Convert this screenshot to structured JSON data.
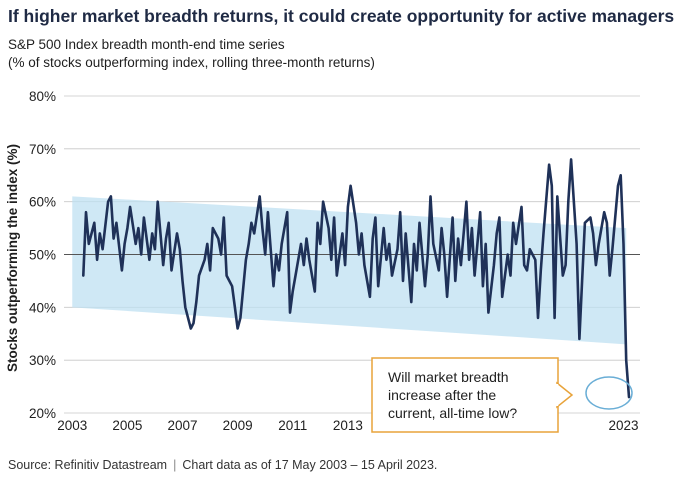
{
  "title": "If higher market breadth returns, it could create opportunity for active managers",
  "subtitle_line1": "S&P 500 Index breadth month-end time series",
  "subtitle_line2": "(% of stocks outperforming index, rolling three-month returns)",
  "callout": {
    "line1": "Will market breadth",
    "line2": "increase after the",
    "line3": "current, all-time low?"
  },
  "footer": {
    "source": "Source: Refinitiv Datastream",
    "note": "Chart data as of 17 May 2003 – 15 April 2023."
  },
  "colors": {
    "line": "#1f3158",
    "band": "#bfe0f2",
    "callout_border": "#e8a33a",
    "circle": "#6aaed6",
    "gridline_50": "#555555",
    "title": "#1f2a44"
  },
  "chart_data": {
    "type": "line",
    "title": "S&P 500 Index breadth month-end time series",
    "xlabel": "",
    "ylabel": "Stocks outperforming the index (%)",
    "xlim": [
      2002.7,
      2023.6
    ],
    "ylim": [
      20,
      80
    ],
    "y_ticks": [
      20,
      30,
      40,
      50,
      60,
      70,
      80
    ],
    "y_tick_labels": [
      "20%",
      "30%",
      "40%",
      "50%",
      "60%",
      "70%",
      "80%"
    ],
    "x_ticks": [
      2003,
      2005,
      2007,
      2009,
      2011,
      2013,
      2023
    ],
    "x_tick_labels": [
      "2003",
      "2005",
      "2007",
      "2009",
      "2011",
      "2013",
      "2023"
    ],
    "grid": "horizontal",
    "reference_line": 50,
    "trend_band": {
      "x": [
        2003.0,
        2023.1
      ],
      "upper": [
        61,
        55
      ],
      "lower": [
        40,
        33
      ]
    },
    "series": [
      {
        "x": [
          2003.4,
          2003.5,
          2003.6,
          2003.8,
          2003.9,
          2004.0,
          2004.1,
          2004.3,
          2004.4,
          2004.5,
          2004.6,
          2004.8,
          2004.9,
          2005.0,
          2005.1,
          2005.3,
          2005.4,
          2005.5,
          2005.6,
          2005.8,
          2005.9,
          2006.0,
          2006.1,
          2006.3,
          2006.4,
          2006.5,
          2006.6,
          2006.8,
          2006.9,
          2007.0,
          2007.1,
          2007.3,
          2007.4,
          2007.5,
          2007.6,
          2007.8,
          2007.9,
          2008.0,
          2008.1,
          2008.3,
          2008.4,
          2008.5,
          2008.6,
          2008.8,
          2008.9,
          2009.0,
          2009.1,
          2009.3,
          2009.4,
          2009.5,
          2009.6,
          2009.8,
          2009.9,
          2010.0,
          2010.1,
          2010.3,
          2010.4,
          2010.5,
          2010.6,
          2010.8,
          2010.9,
          2011.0,
          2011.1,
          2011.3,
          2011.4,
          2011.5,
          2011.6,
          2011.8,
          2011.9,
          2012.0,
          2012.1,
          2012.3,
          2012.4,
          2012.5,
          2012.6,
          2012.8,
          2012.9,
          2013.0,
          2013.1,
          2013.3,
          2013.4,
          2013.5,
          2013.6,
          2013.8,
          2013.9,
          2014.0,
          2014.1,
          2014.3,
          2014.4,
          2014.5,
          2014.6,
          2014.8,
          2014.9,
          2015.0,
          2015.1,
          2015.3,
          2015.4,
          2015.5,
          2015.6,
          2015.8,
          2015.9,
          2016.0,
          2016.1,
          2016.3,
          2016.4,
          2016.5,
          2016.6,
          2016.8,
          2016.9,
          2017.0,
          2017.1,
          2017.3,
          2017.4,
          2017.5,
          2017.6,
          2017.8,
          2017.9,
          2018.0,
          2018.1,
          2018.3,
          2018.4,
          2018.5,
          2018.6,
          2018.8,
          2018.9,
          2019.0,
          2019.1,
          2019.3,
          2019.4,
          2019.5,
          2019.6,
          2019.8,
          2019.9,
          2020.0,
          2020.1,
          2020.3,
          2020.4,
          2020.5,
          2020.6,
          2020.8,
          2020.9,
          2021.0,
          2021.1,
          2021.3,
          2021.4,
          2021.5,
          2021.6,
          2021.8,
          2021.9,
          2022.0,
          2022.1,
          2022.3,
          2022.4,
          2022.5,
          2022.6,
          2022.8,
          2022.9,
          2023.0,
          2023.1,
          2023.2
        ],
        "values": [
          46,
          58,
          52,
          56,
          49,
          54,
          51,
          60,
          61,
          53,
          56,
          47,
          52,
          55,
          59,
          52,
          55,
          50,
          57,
          49,
          54,
          51,
          60,
          48,
          53,
          56,
          47,
          54,
          51,
          45,
          40,
          36,
          37,
          41,
          46,
          49,
          52,
          47,
          55,
          53,
          50,
          57,
          46,
          44,
          40,
          36,
          38,
          49,
          52,
          56,
          54,
          61,
          55,
          50,
          58,
          44,
          50,
          47,
          52,
          58,
          39,
          43,
          46,
          52,
          48,
          53,
          49,
          43,
          56,
          52,
          60,
          55,
          49,
          57,
          46,
          54,
          48,
          59,
          63,
          56,
          50,
          54,
          48,
          42,
          53,
          57,
          44,
          55,
          49,
          52,
          46,
          51,
          58,
          45,
          54,
          41,
          52,
          47,
          56,
          44,
          50,
          61,
          52,
          47,
          55,
          50,
          42,
          57,
          45,
          53,
          48,
          60,
          49,
          55,
          46,
          58,
          44,
          52,
          39,
          48,
          54,
          57,
          42,
          50,
          46,
          56,
          52,
          59,
          48,
          47,
          51,
          49,
          38,
          47,
          54,
          67,
          63,
          38,
          61,
          46,
          48,
          60,
          68,
          52,
          34,
          45,
          56,
          57,
          54,
          48,
          52,
          58,
          56,
          46,
          51,
          63,
          65,
          52,
          30,
          23
        ]
      }
    ],
    "annotation": "Will market breadth increase after the current, all-time low?"
  }
}
